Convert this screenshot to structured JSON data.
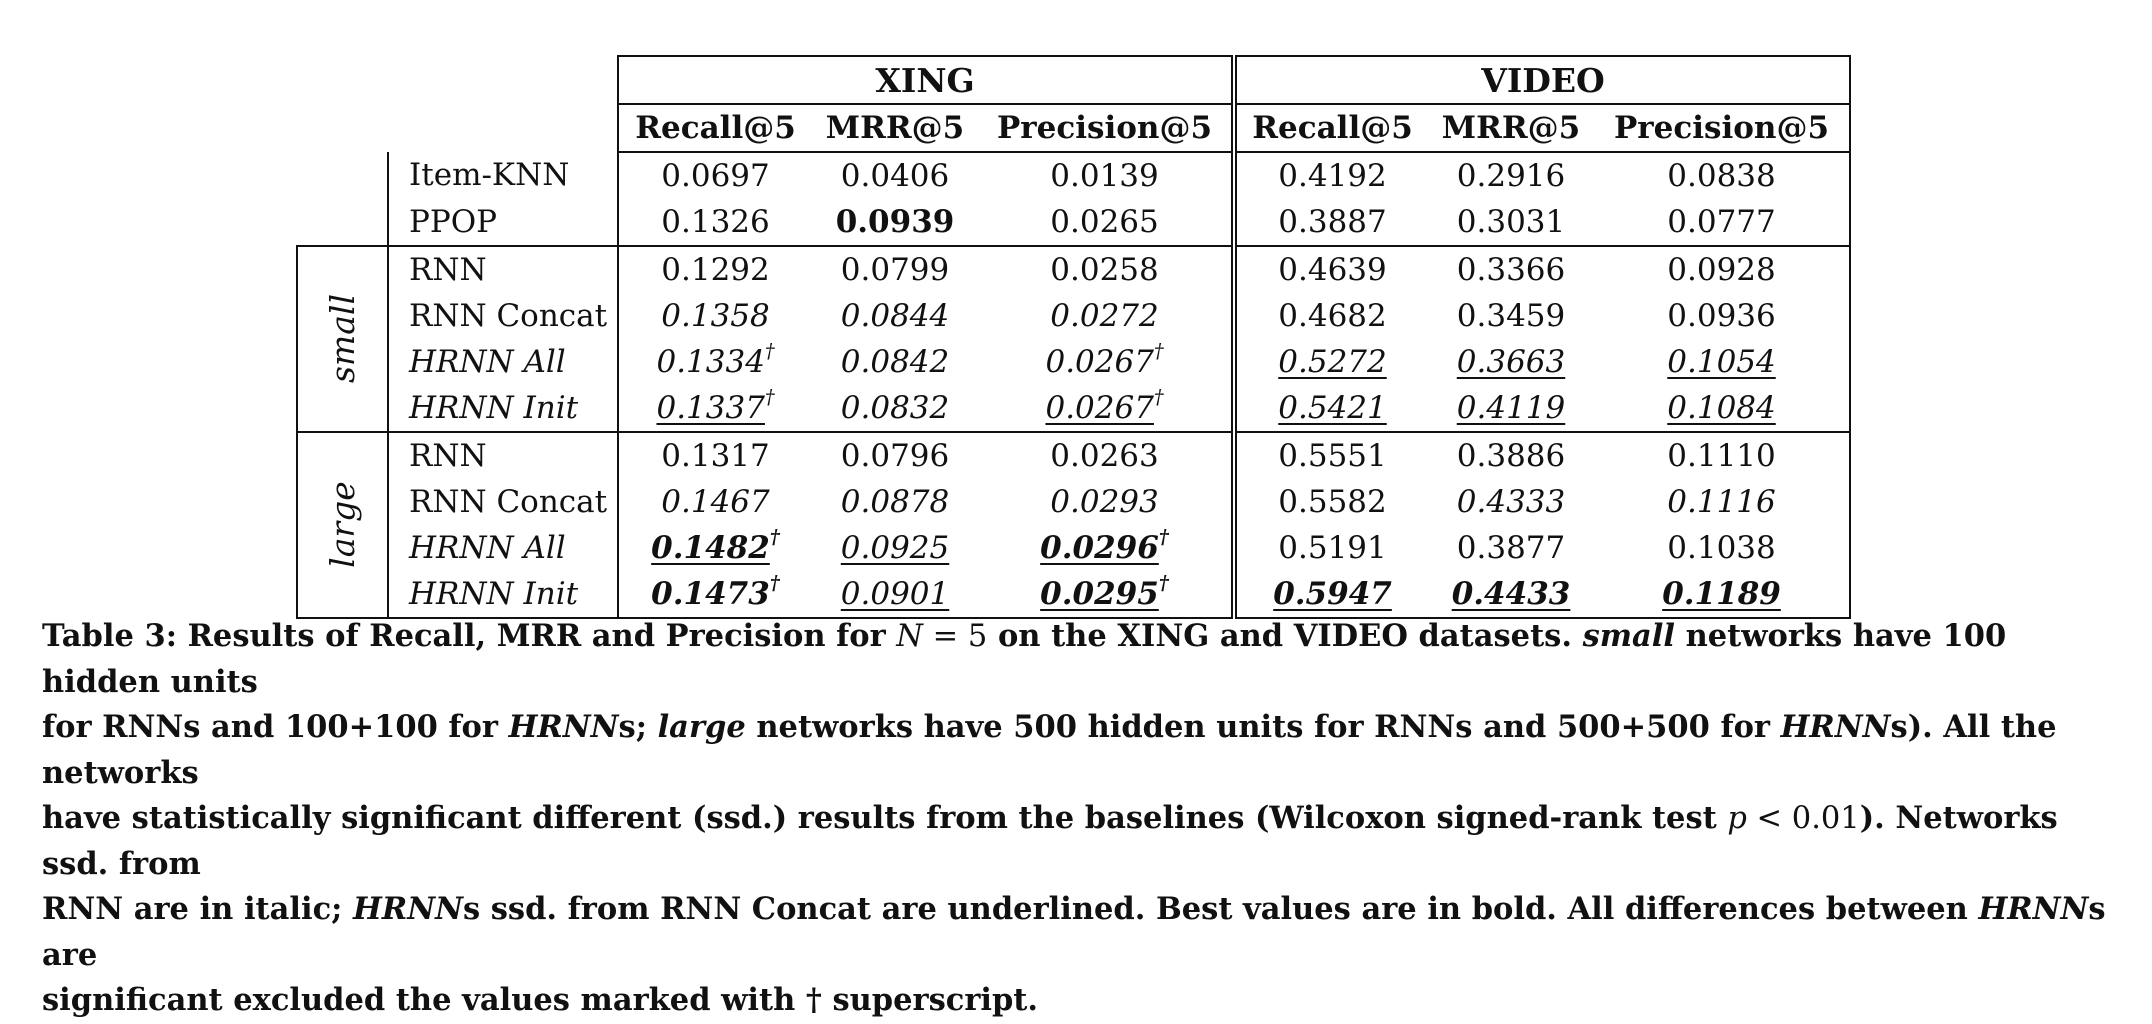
{
  "table": {
    "datasets": [
      "XING",
      "VIDEO"
    ],
    "metrics": [
      "Recall@5",
      "MRR@5",
      "Precision@5",
      "Recall@5",
      "MRR@5",
      "Precision@5"
    ],
    "groups": {
      "small": "small",
      "large": "large"
    },
    "rows": [
      {
        "name": "Item-KNN",
        "cells": [
          "0.0697",
          "0.0406",
          "0.0139",
          "0.4192",
          "0.2916",
          "0.0838"
        ]
      },
      {
        "name": "PPOP",
        "cells": [
          "0.1326",
          "0.0939",
          "0.0265",
          "0.3887",
          "0.3031",
          "0.0777"
        ]
      },
      {
        "name": "RNN",
        "cells": [
          "0.1292",
          "0.0799",
          "0.0258",
          "0.4639",
          "0.3366",
          "0.0928"
        ]
      },
      {
        "name": "RNN Concat",
        "cells": [
          "0.1358",
          "0.0844",
          "0.0272",
          "0.4682",
          "0.3459",
          "0.0936"
        ]
      },
      {
        "name": "HRNN All",
        "cells": [
          "0.1334",
          "0.0842",
          "0.0267",
          "0.5272",
          "0.3663",
          "0.1054"
        ]
      },
      {
        "name": "HRNN Init",
        "cells": [
          "0.1337",
          "0.0832",
          "0.0267",
          "0.5421",
          "0.4119",
          "0.1084"
        ]
      },
      {
        "name": "RNN",
        "cells": [
          "0.1317",
          "0.0796",
          "0.0263",
          "0.5551",
          "0.3886",
          "0.1110"
        ]
      },
      {
        "name": "RNN Concat",
        "cells": [
          "0.1467",
          "0.0878",
          "0.0293",
          "0.5582",
          "0.4333",
          "0.1116"
        ]
      },
      {
        "name": "HRNN All",
        "cells": [
          "0.1482",
          "0.0925",
          "0.0296",
          "0.5191",
          "0.3877",
          "0.1038"
        ]
      },
      {
        "name": "HRNN Init",
        "cells": [
          "0.1473",
          "0.0901",
          "0.0295",
          "0.5947",
          "0.4433",
          "0.1189"
        ]
      }
    ],
    "dagger": "†"
  },
  "caption": {
    "l1a": "Table 3: Results of Recall, MRR and Precision for ",
    "N": "N",
    "eq": " = 5",
    "l1b": " on the XING and VIDEO datasets. ",
    "small": "small",
    "l1c": " networks have 100 hidden units",
    "l2a": "for RNNs and 100+100 for ",
    "hrnn": "HRNN",
    "l2b": "s; ",
    "large": "large",
    "l2c": " networks have 500 hidden units for RNNs and 500+500 for ",
    "l2d": "s). All the networks",
    "l3a": "have statistically significant different (ssd.) results from the baselines (Wilcoxon signed-rank test ",
    "p": "p",
    "lt": " < 0.01",
    "l3b": "). Networks ssd. from",
    "l4a": "RNN are in italic; ",
    "l4b": "s ssd. from RNN Concat are underlined. Best values are in bold. All differences between ",
    "l4c": "s are",
    "l5": "significant excluded the values marked with † superscript."
  }
}
